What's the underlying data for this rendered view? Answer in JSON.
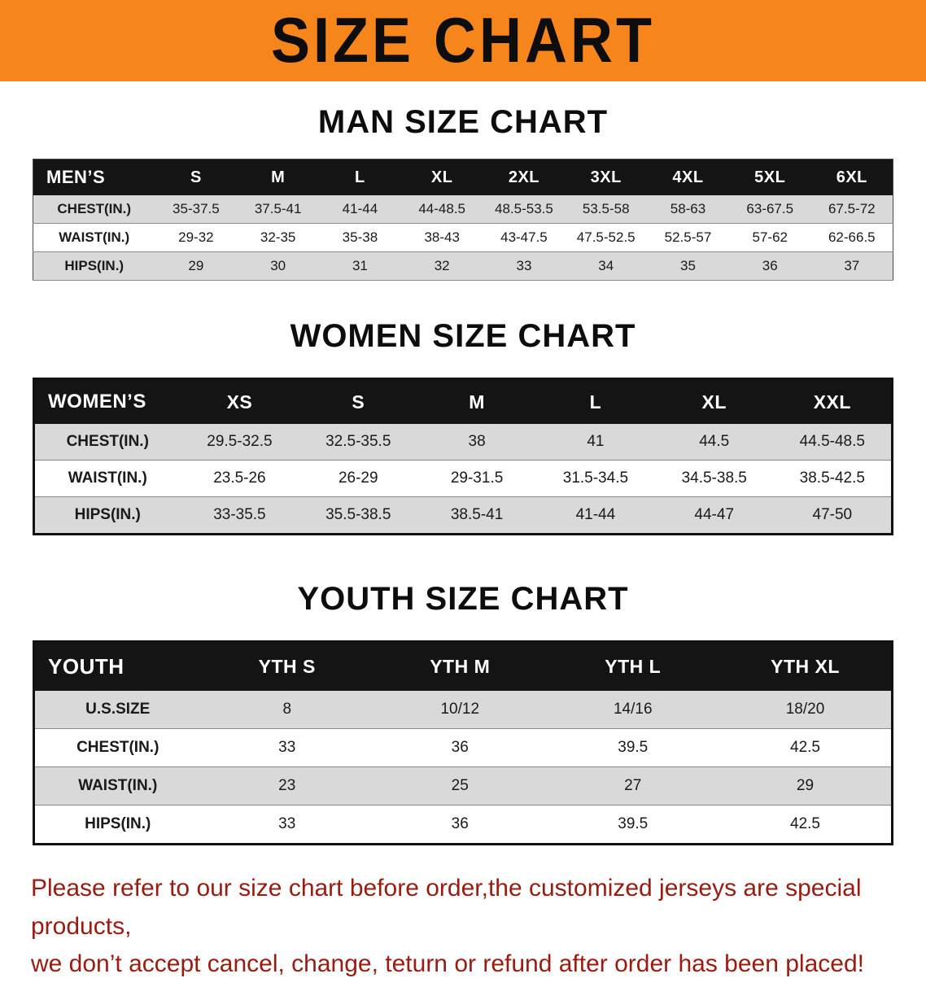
{
  "banner": {
    "title": "SIZE CHART"
  },
  "colors": {
    "accent_orange": "#F6861C",
    "table_header_black": "#141414",
    "row_gray": "#D9D9D9",
    "footer_red": "#9A1B10"
  },
  "men": {
    "heading": "MAN SIZE CHART",
    "header": [
      "MEN’S",
      "S",
      "M",
      "L",
      "XL",
      "2XL",
      "3XL",
      "4XL",
      "5XL",
      "6XL"
    ],
    "rows": [
      {
        "label": "CHEST(IN.)",
        "values": [
          "35-37.5",
          "37.5-41",
          "41-44",
          "44-48.5",
          "48.5-53.5",
          "53.5-58",
          "58-63",
          "63-67.5",
          "67.5-72"
        ]
      },
      {
        "label": "WAIST(IN.)",
        "values": [
          "29-32",
          "32-35",
          "35-38",
          "38-43",
          "43-47.5",
          "47.5-52.5",
          "52.5-57",
          "57-62",
          "62-66.5"
        ]
      },
      {
        "label": "HIPS(IN.)",
        "values": [
          "29",
          "30",
          "31",
          "32",
          "33",
          "34",
          "35",
          "36",
          "37"
        ]
      }
    ]
  },
  "women": {
    "heading": "WOMEN SIZE CHART",
    "header": [
      "WOMEN’S",
      "XS",
      "S",
      "M",
      "L",
      "XL",
      "XXL"
    ],
    "rows": [
      {
        "label": "CHEST(IN.)",
        "values": [
          "29.5-32.5",
          "32.5-35.5",
          "38",
          "41",
          "44.5",
          "44.5-48.5"
        ]
      },
      {
        "label": "WAIST(IN.)",
        "values": [
          "23.5-26",
          "26-29",
          "29-31.5",
          "31.5-34.5",
          "34.5-38.5",
          "38.5-42.5"
        ]
      },
      {
        "label": "HIPS(IN.)",
        "values": [
          "33-35.5",
          "35.5-38.5",
          "38.5-41",
          "41-44",
          "44-47",
          "47-50"
        ]
      }
    ]
  },
  "youth": {
    "heading": "YOUTH SIZE CHART",
    "header": [
      "YOUTH",
      "YTH S",
      "YTH M",
      "YTH L",
      "YTH XL"
    ],
    "rows": [
      {
        "label": "U.S.SIZE",
        "values": [
          "8",
          "10/12",
          "14/16",
          "18/20"
        ]
      },
      {
        "label": "CHEST(IN.)",
        "values": [
          "33",
          "36",
          "39.5",
          "42.5"
        ]
      },
      {
        "label": "WAIST(IN.)",
        "values": [
          "23",
          "25",
          "27",
          "29"
        ]
      },
      {
        "label": "HIPS(IN.)",
        "values": [
          "33",
          "36",
          "39.5",
          "42.5"
        ]
      }
    ]
  },
  "footer": {
    "line1": "Please refer to our size chart before order,the customized jerseys are special products,",
    "line2": "we don’t accept cancel, change, teturn or refund after order has been placed!"
  }
}
